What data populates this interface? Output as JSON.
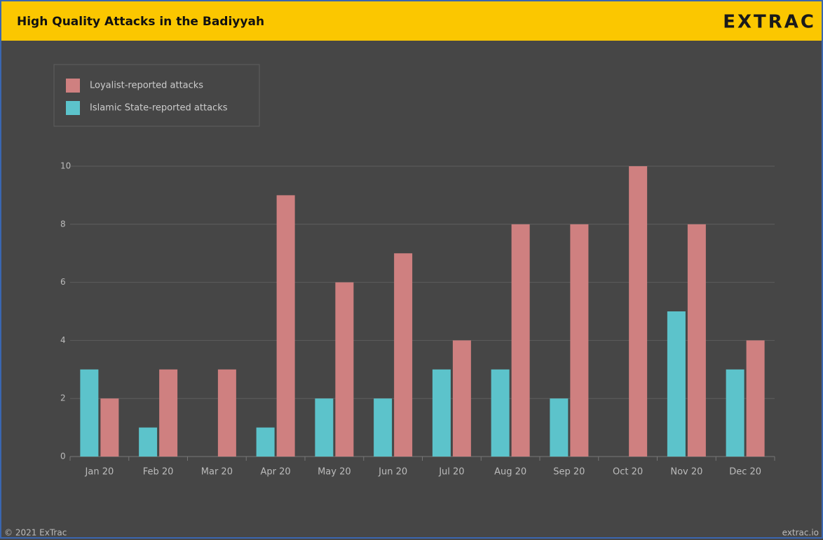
{
  "header": {
    "title": "High Quality Attacks in the Badiyyah",
    "logo": "EXTRAC"
  },
  "footer": {
    "copyright": "© 2021 ExTrac",
    "site": "extrac.io"
  },
  "chart_data": {
    "type": "bar",
    "categories": [
      "Jan 20",
      "Feb 20",
      "Mar 20",
      "Apr 20",
      "May 20",
      "Jun 20",
      "Jul 20",
      "Aug 20",
      "Sep 20",
      "Oct 20",
      "Nov 20",
      "Dec 20"
    ],
    "series": [
      {
        "name": "Loyalist-reported attacks",
        "color": "#cf8080",
        "values": [
          2,
          3,
          3,
          9,
          6,
          7,
          4,
          8,
          8,
          10,
          8,
          4
        ]
      },
      {
        "name": "Islamic State-reported attacks",
        "color": "#5cc3cb",
        "values": [
          3,
          1,
          0,
          1,
          2,
          2,
          3,
          3,
          2,
          0,
          5,
          3
        ]
      }
    ],
    "ylim": [
      0,
      10
    ],
    "yticks": [
      0,
      2,
      4,
      6,
      8,
      10
    ],
    "grid": true,
    "legend": "top-left"
  }
}
